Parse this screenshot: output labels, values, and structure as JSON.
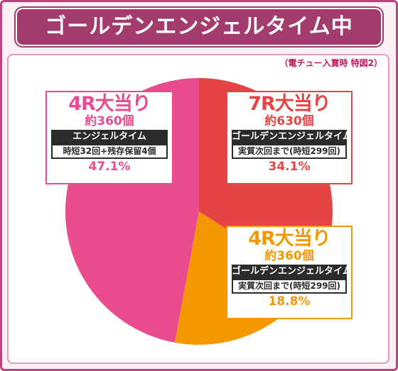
{
  "header": {
    "title": "ゴールデンエンジェルタイム中"
  },
  "note": "（電チュー入賞時 特図2）",
  "colors": {
    "frame": "#b8467c",
    "title_bg": "#a33c6d",
    "pink": "#e84c8f",
    "red": "#e64444",
    "orange": "#f39800"
  },
  "chart_data": {
    "type": "pie",
    "title": "",
    "slices": [
      {
        "name": "7R大当り",
        "count": "約630個",
        "mode": "ゴールデンエンジェルタイム",
        "condition": "実質次回まで(時短299回)",
        "value": 34.1,
        "value_label": "34.1%",
        "color": "#e64444"
      },
      {
        "name": "4R大当り",
        "count": "約360個",
        "mode": "ゴールデンエンジェルタイム",
        "condition": "実質次回まで(時短299回)",
        "value": 18.8,
        "value_label": "18.8%",
        "color": "#f39800"
      },
      {
        "name": "4R大当り",
        "count": "約360個",
        "mode": "エンジェルタイム",
        "condition": "時短32回+残存保留4個",
        "value": 47.1,
        "value_label": "47.1%",
        "color": "#e84c8f"
      }
    ]
  }
}
